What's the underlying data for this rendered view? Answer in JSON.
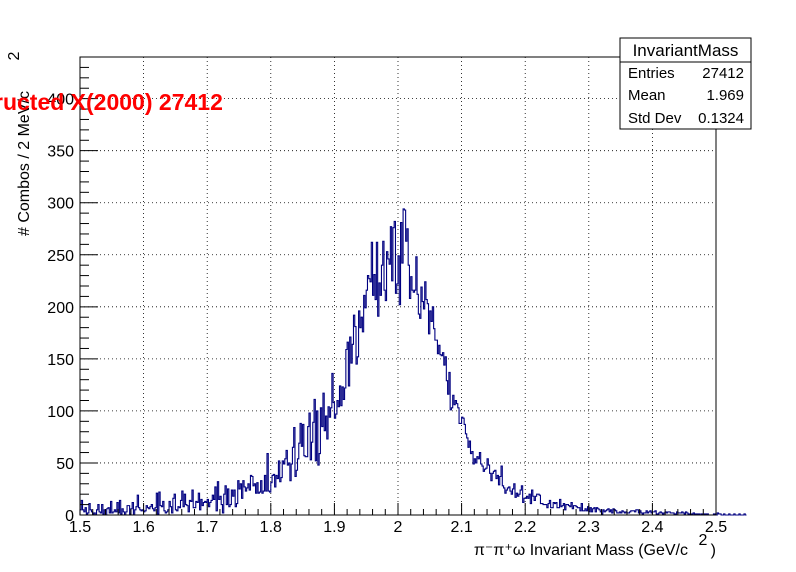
{
  "chart_data": {
    "type": "histogram",
    "title": "ructed X(2000) 27412",
    "xlabel": "π⁻π⁺ω Invariant Mass (GeV/c",
    "xlabel_sup": "2",
    "xlabel_close": ")",
    "ylabel": "# Combos / 2 MeV/c",
    "ylabel_sup": "2",
    "xlim": [
      1.5,
      2.5
    ],
    "ylim": [
      0,
      440
    ],
    "x_ticks": [
      1.5,
      1.6,
      1.7,
      1.8,
      1.9,
      2.0,
      2.1,
      2.2,
      2.3,
      2.4,
      2.5
    ],
    "x_tick_labels": [
      "1.5",
      "1.6",
      "1.7",
      "1.8",
      "1.9",
      "2",
      "2.1",
      "2.2",
      "2.3",
      "2.4",
      "2.5"
    ],
    "y_ticks": [
      0,
      50,
      100,
      150,
      200,
      250,
      300,
      350,
      400
    ],
    "y_tick_labels": [
      "0",
      "50",
      "100",
      "150",
      "200",
      "250",
      "300",
      "350",
      "400"
    ],
    "grid": true,
    "line_color": "#000080",
    "title_color": "#ff0000",
    "bin_width": 0.002,
    "bin_centers_start": 1.501,
    "bin_contents": [
      5,
      14,
      5,
      3,
      7,
      1,
      2,
      11,
      5,
      3,
      1,
      2,
      0,
      5,
      10,
      3,
      2,
      10,
      1,
      5,
      0,
      6,
      7,
      2,
      13,
      2,
      3,
      5,
      3,
      12,
      2,
      14,
      1,
      6,
      3,
      0,
      3,
      9,
      9,
      1,
      6,
      12,
      0,
      5,
      8,
      19,
      7,
      5,
      4,
      5,
      3,
      4,
      9,
      7,
      6,
      8,
      10,
      6,
      4,
      7,
      21,
      1,
      22,
      9,
      8,
      13,
      4,
      2,
      3,
      5,
      13,
      8,
      2,
      16,
      20,
      5,
      4,
      8,
      7,
      14,
      23,
      8,
      20,
      10,
      9,
      3,
      14,
      13,
      24,
      7,
      7,
      13,
      12,
      21,
      5,
      15,
      9,
      12,
      13,
      12,
      15,
      8,
      12,
      14,
      19,
      15,
      27,
      4,
      32,
      15,
      18,
      10,
      2,
      20,
      28,
      10,
      25,
      8,
      10,
      24,
      18,
      24,
      8,
      11,
      33,
      25,
      30,
      16,
      33,
      27,
      23,
      26,
      30,
      24,
      38,
      37,
      28,
      30,
      21,
      31,
      21,
      22,
      33,
      21,
      23,
      38,
      23,
      59,
      23,
      22,
      31,
      38,
      39,
      27,
      38,
      35,
      52,
      32,
      36,
      52,
      49,
      54,
      62,
      48,
      50,
      33,
      49,
      65,
      84,
      37,
      43,
      54,
      69,
      88,
      66,
      87,
      57,
      56,
      56,
      85,
      98,
      53,
      70,
      89,
      111,
      52,
      100,
      48,
      59,
      103,
      85,
      117,
      81,
      95,
      73,
      104,
      94,
      103,
      136,
      108,
      93,
      97,
      110,
      104,
      124,
      105,
      123,
      111,
      122,
      159,
      166,
      124,
      171,
      146,
      164,
      192,
      181,
      145,
      152,
      196,
      180,
      190,
      176,
      211,
      199,
      216,
      230,
      227,
      224,
      262,
      211,
      231,
      207,
      262,
      191,
      223,
      211,
      240,
      263,
      216,
      206,
      253,
      246,
      241,
      277,
      225,
      276,
      282,
      213,
      222,
      249,
      202,
      281,
      242,
      294,
      293,
      263,
      275,
      240,
      208,
      229,
      216,
      214,
      216,
      248,
      212,
      193,
      189,
      219,
      205,
      198,
      224,
      207,
      203,
      174,
      196,
      186,
      200,
      179,
      168,
      168,
      155,
      163,
      154,
      153,
      156,
      144,
      152,
      129,
      116,
      137,
      101,
      103,
      115,
      106,
      110,
      107,
      103,
      88,
      88,
      94,
      93,
      87,
      78,
      74,
      65,
      71,
      59,
      61,
      49,
      54,
      50,
      56,
      54,
      60,
      49,
      47,
      42,
      44,
      45,
      54,
      48,
      40,
      33,
      40,
      42,
      43,
      35,
      38,
      29,
      37,
      47,
      28,
      26,
      21,
      24,
      26,
      27,
      23,
      20,
      25,
      30,
      17,
      21,
      18,
      20,
      24,
      28,
      12,
      16,
      16,
      18,
      16,
      20,
      11,
      24,
      18,
      14,
      18,
      20,
      20,
      19,
      11,
      11,
      10,
      10,
      10,
      7,
      11,
      14,
      7,
      7,
      12,
      11,
      12,
      7,
      7,
      15,
      8,
      9,
      11,
      5,
      10,
      10,
      9,
      8,
      12,
      6,
      9,
      9,
      8,
      7,
      7,
      4,
      11,
      4,
      4,
      6,
      4,
      8,
      3,
      7,
      3,
      6,
      7,
      3,
      7,
      6,
      5,
      3,
      1,
      5,
      3,
      4,
      5,
      6,
      3,
      5,
      2,
      6,
      5,
      4,
      2,
      2,
      3,
      2,
      4,
      3,
      2,
      3,
      2,
      2,
      3,
      4,
      4,
      4,
      3,
      5,
      5,
      2,
      4,
      2,
      1,
      2,
      2,
      4,
      2,
      3,
      4,
      2,
      3,
      3,
      4,
      1,
      1,
      2,
      3,
      2,
      1,
      2,
      3,
      2,
      3,
      3,
      2,
      2,
      2,
      1,
      1,
      3,
      2,
      2,
      2,
      3,
      2,
      1,
      3,
      2,
      1,
      1,
      1,
      1,
      2,
      1,
      1,
      1,
      1,
      0,
      1,
      1,
      0,
      1,
      1,
      1,
      0,
      0,
      0,
      0,
      1,
      1,
      0,
      2,
      1,
      1,
      0,
      0,
      1,
      0,
      0,
      0,
      1,
      0,
      0,
      0,
      1,
      0,
      0,
      0,
      1,
      0,
      0,
      0,
      1,
      0
    ]
  },
  "stats_box": {
    "title": "InvariantMass",
    "rows": [
      {
        "label": "Entries",
        "value": "27412"
      },
      {
        "label": "Mean",
        "value": "1.969"
      },
      {
        "label": "Std Dev",
        "value": "0.1324"
      }
    ]
  }
}
